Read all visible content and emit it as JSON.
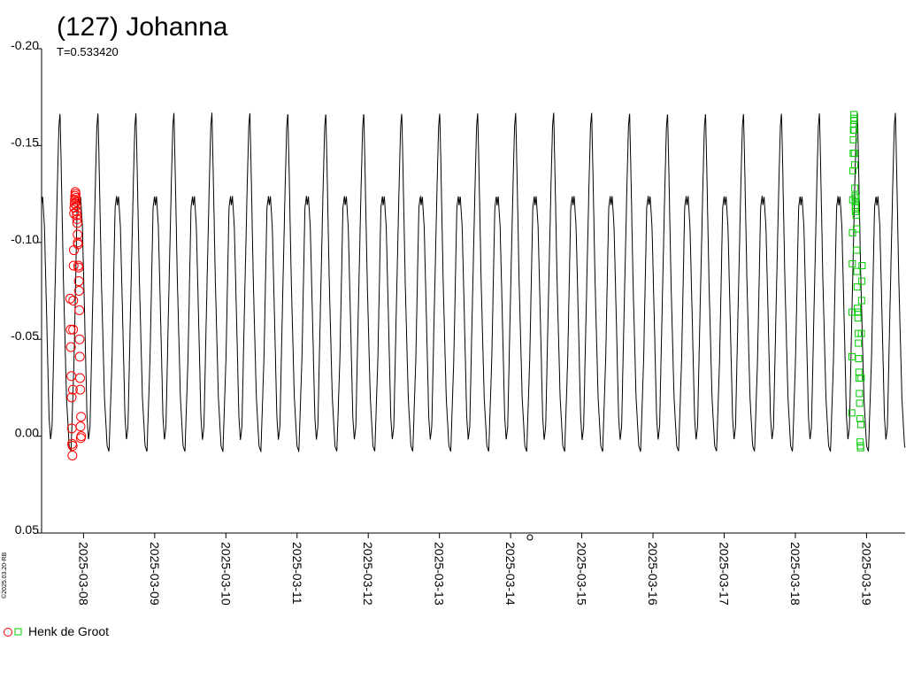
{
  "chart_data": {
    "type": "scatter",
    "title": "(127) Johanna",
    "subtitle": "T=0.533420",
    "credit": "©2025.03.20-RB",
    "xlabel": "",
    "ylabel": "",
    "y_inverted": true,
    "ylim": [
      0.05,
      -0.2
    ],
    "y_ticks": [
      {
        "value": -0.2,
        "label": "-0.20"
      },
      {
        "value": -0.15,
        "label": "-0.15"
      },
      {
        "value": -0.1,
        "label": "-0.10"
      },
      {
        "value": -0.05,
        "label": "-0.05"
      },
      {
        "value": 0.0,
        "label": "0.00"
      },
      {
        "value": 0.05,
        "label": "0.05"
      }
    ],
    "xlim": [
      "2025-03-07 09:52",
      "2025-03-19 13:00"
    ],
    "x_ticks": [
      "2025-03-08",
      "2025-03-09",
      "2025-03-10",
      "2025-03-11",
      "2025-03-12",
      "2025-03-13",
      "2025-03-14",
      "2025-03-15",
      "2025-03-16",
      "2025-03-17",
      "2025-03-18",
      "2025-03-19"
    ],
    "zero_time_marker": "2025-03-14 06:30",
    "model_curve": {
      "description": "periodic lightcurve fit",
      "period_days": 0.53342,
      "amplitude_range": [
        0.008,
        -0.167
      ]
    },
    "series": [
      {
        "name": "Henk de Groot",
        "marker": "circle",
        "color": "#ff0000",
        "points": [
          [
            "2025-03-07 19:30",
            -0.071
          ],
          [
            "2025-03-07 19:40",
            -0.055
          ],
          [
            "2025-03-07 19:45",
            -0.046
          ],
          [
            "2025-03-07 19:55",
            -0.031
          ],
          [
            "2025-03-07 20:00",
            -0.02
          ],
          [
            "2025-03-07 20:05",
            -0.004
          ],
          [
            "2025-03-07 20:10",
            0.004
          ],
          [
            "2025-03-07 20:15",
            0.01
          ],
          [
            "2025-03-07 20:20",
            0.005
          ],
          [
            "2025-03-07 20:25",
            -0.024
          ],
          [
            "2025-03-07 20:30",
            -0.055
          ],
          [
            "2025-03-07 20:33",
            -0.07
          ],
          [
            "2025-03-07 20:40",
            -0.088
          ],
          [
            "2025-03-07 20:45",
            -0.096
          ],
          [
            "2025-03-07 20:50",
            -0.115
          ],
          [
            "2025-03-07 20:55",
            -0.118
          ],
          [
            "2025-03-07 21:00",
            -0.12
          ],
          [
            "2025-03-07 21:05",
            -0.122
          ],
          [
            "2025-03-07 21:10",
            -0.124
          ],
          [
            "2025-03-07 21:15",
            -0.126
          ],
          [
            "2025-03-07 21:20",
            -0.125
          ],
          [
            "2025-03-07 21:25",
            -0.123
          ],
          [
            "2025-03-07 21:30",
            -0.121
          ],
          [
            "2025-03-07 21:35",
            -0.119
          ],
          [
            "2025-03-07 21:40",
            -0.116
          ],
          [
            "2025-03-07 21:45",
            -0.114
          ],
          [
            "2025-03-07 21:50",
            -0.112
          ],
          [
            "2025-03-07 21:55",
            -0.11
          ],
          [
            "2025-03-07 22:00",
            -0.104
          ],
          [
            "2025-03-07 22:05",
            -0.1
          ],
          [
            "2025-03-07 22:10",
            -0.099
          ],
          [
            "2025-03-07 22:15",
            -0.088
          ],
          [
            "2025-03-07 22:20",
            -0.087
          ],
          [
            "2025-03-07 22:25",
            -0.08
          ],
          [
            "2025-03-07 22:30",
            -0.075
          ],
          [
            "2025-03-07 22:35",
            -0.065
          ],
          [
            "2025-03-07 22:40",
            -0.05
          ],
          [
            "2025-03-07 22:45",
            -0.041
          ],
          [
            "2025-03-07 22:50",
            -0.03
          ],
          [
            "2025-03-07 22:55",
            -0.024
          ],
          [
            "2025-03-07 23:00",
            -0.005
          ],
          [
            "2025-03-07 23:05",
            0.001
          ],
          [
            "2025-03-07 23:10",
            -0.01
          ],
          [
            "2025-03-07 23:15",
            0.0
          ]
        ]
      },
      {
        "name": "",
        "marker": "square",
        "color": "#00cc00",
        "points": [
          [
            "2025-03-18 19:00",
            -0.012
          ],
          [
            "2025-03-18 19:05",
            -0.041
          ],
          [
            "2025-03-18 19:08",
            -0.064
          ],
          [
            "2025-03-18 19:12",
            -0.089
          ],
          [
            "2025-03-18 19:15",
            -0.105
          ],
          [
            "2025-03-18 19:20",
            -0.122
          ],
          [
            "2025-03-18 19:25",
            -0.137
          ],
          [
            "2025-03-18 19:30",
            -0.146
          ],
          [
            "2025-03-18 19:33",
            -0.153
          ],
          [
            "2025-03-18 19:36",
            -0.158
          ],
          [
            "2025-03-18 19:40",
            -0.161
          ],
          [
            "2025-03-18 19:42",
            -0.164
          ],
          [
            "2025-03-18 19:45",
            -0.166
          ],
          [
            "2025-03-18 19:48",
            -0.163
          ],
          [
            "2025-03-18 19:50",
            -0.158
          ],
          [
            "2025-03-18 19:55",
            -0.146
          ],
          [
            "2025-03-18 20:00",
            -0.14
          ],
          [
            "2025-03-18 20:03",
            -0.128
          ],
          [
            "2025-03-18 20:06",
            -0.124
          ],
          [
            "2025-03-18 20:10",
            -0.121
          ],
          [
            "2025-03-18 20:13",
            -0.118
          ],
          [
            "2025-03-18 20:16",
            -0.116
          ],
          [
            "2025-03-18 20:20",
            -0.119
          ],
          [
            "2025-03-18 20:25",
            -0.123
          ],
          [
            "2025-03-18 20:30",
            -0.114
          ],
          [
            "2025-03-18 20:35",
            -0.107
          ],
          [
            "2025-03-18 20:40",
            -0.096
          ],
          [
            "2025-03-18 20:45",
            -0.085
          ],
          [
            "2025-03-18 20:50",
            -0.077
          ],
          [
            "2025-03-18 20:55",
            -0.066
          ],
          [
            "2025-03-18 21:00",
            -0.064
          ],
          [
            "2025-03-18 21:05",
            -0.061
          ],
          [
            "2025-03-18 21:10",
            -0.053
          ],
          [
            "2025-03-18 21:15",
            -0.048
          ],
          [
            "2025-03-18 21:20",
            -0.04
          ],
          [
            "2025-03-18 21:25",
            -0.033
          ],
          [
            "2025-03-18 21:30",
            -0.03
          ],
          [
            "2025-03-18 21:35",
            -0.022
          ],
          [
            "2025-03-18 21:40",
            -0.017
          ],
          [
            "2025-03-18 21:45",
            -0.009
          ],
          [
            "2025-03-18 21:50",
            0.003
          ],
          [
            "2025-03-18 21:55",
            0.005
          ],
          [
            "2025-03-18 22:00",
            0.006
          ],
          [
            "2025-03-18 22:05",
            -0.006
          ],
          [
            "2025-03-18 22:10",
            -0.03
          ],
          [
            "2025-03-18 22:15",
            -0.053
          ],
          [
            "2025-03-18 22:20",
            -0.07
          ],
          [
            "2025-03-18 22:25",
            -0.08
          ],
          [
            "2025-03-18 22:30",
            -0.088
          ]
        ]
      }
    ]
  }
}
